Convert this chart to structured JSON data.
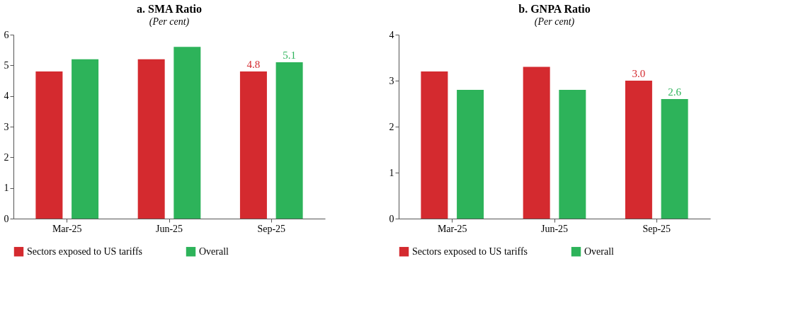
{
  "chart_data": [
    {
      "type": "bar",
      "title": "a. SMA Ratio",
      "subtitle": "(Per cent)",
      "categories": [
        "Mar-25",
        "Jun-25",
        "Sep-25"
      ],
      "series": [
        {
          "name": "Sectors exposed to US tariffs",
          "color": "#d42a2f",
          "values": [
            4.8,
            5.2,
            4.8
          ],
          "value_labels": [
            null,
            null,
            "4.8"
          ]
        },
        {
          "name": "Overall",
          "color": "#2db35a",
          "values": [
            5.2,
            5.6,
            5.1
          ],
          "value_labels": [
            null,
            null,
            "5.1"
          ]
        }
      ],
      "ylim": [
        0,
        6
      ],
      "yticks": [
        0,
        1,
        2,
        3,
        4,
        5,
        6
      ],
      "legend": "bottom",
      "grid": false
    },
    {
      "type": "bar",
      "title": "b. GNPA Ratio",
      "subtitle": "(Per cent)",
      "categories": [
        "Mar-25",
        "Jun-25",
        "Sep-25"
      ],
      "series": [
        {
          "name": "Sectors exposed to US tariffs",
          "color": "#d42a2f",
          "values": [
            3.2,
            3.3,
            3.0
          ],
          "value_labels": [
            null,
            null,
            "3.0"
          ]
        },
        {
          "name": "Overall",
          "color": "#2db35a",
          "values": [
            2.8,
            2.8,
            2.6
          ],
          "value_labels": [
            null,
            null,
            "2.6"
          ]
        }
      ],
      "ylim": [
        0,
        4
      ],
      "yticks": [
        0,
        1,
        2,
        3,
        4
      ],
      "legend": "bottom",
      "grid": false
    }
  ]
}
